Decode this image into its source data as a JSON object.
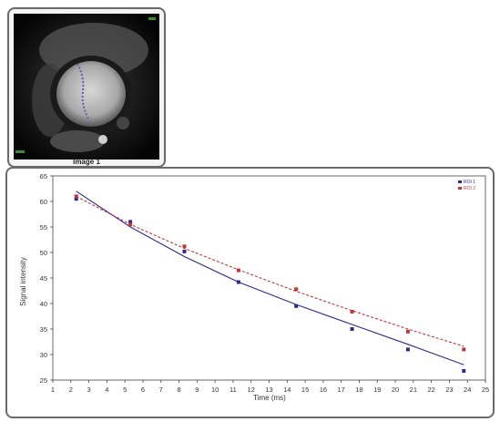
{
  "thumbnail": {
    "caption": "Image 1"
  },
  "chart_data": {
    "type": "scatter",
    "title": "",
    "xlabel": "Time (ms)",
    "ylabel": "Signal intensity",
    "xlim": [
      1,
      25
    ],
    "ylim": [
      25,
      65
    ],
    "xticks": [
      1,
      2,
      3,
      4,
      5,
      6,
      7,
      8,
      9,
      10,
      11,
      12,
      13,
      14,
      15,
      16,
      17,
      18,
      19,
      20,
      21,
      22,
      23,
      24,
      25
    ],
    "yticks": [
      25,
      30,
      35,
      40,
      45,
      50,
      55,
      60,
      65
    ],
    "legend_position": "top-right",
    "legend": [
      "ROI 1",
      "ROI 2"
    ],
    "series": [
      {
        "name": "ROI 1",
        "color": "#2b2b8a",
        "x": [
          2.3,
          5.3,
          8.3,
          11.3,
          14.5,
          17.6,
          20.7,
          23.8
        ],
        "y": [
          60.5,
          56.0,
          50.2,
          44.2,
          39.5,
          35.0,
          31.0,
          26.8
        ],
        "fit": [
          [
            2.3,
            62.0
          ],
          [
            5.3,
            55.0
          ],
          [
            8.3,
            49.2
          ],
          [
            11.3,
            44.2
          ],
          [
            14.5,
            39.8
          ],
          [
            17.6,
            35.9
          ],
          [
            20.7,
            32.0
          ],
          [
            23.8,
            28.0
          ]
        ]
      },
      {
        "name": "ROI 2",
        "color": "#c0363a",
        "x": [
          2.3,
          5.3,
          8.3,
          11.3,
          14.5,
          17.6,
          20.7,
          23.8
        ],
        "y": [
          61.0,
          55.5,
          51.2,
          46.5,
          42.8,
          38.4,
          34.5,
          31.0
        ],
        "fit": [
          [
            2.3,
            61.0
          ],
          [
            5.3,
            55.5
          ],
          [
            8.3,
            50.8
          ],
          [
            11.3,
            46.6
          ],
          [
            14.5,
            42.4
          ],
          [
            17.6,
            38.6
          ],
          [
            20.7,
            35.0
          ],
          [
            23.8,
            31.6
          ]
        ]
      }
    ]
  },
  "colors": {
    "panel_border": "#6a6a6a",
    "axis": "#444444"
  }
}
